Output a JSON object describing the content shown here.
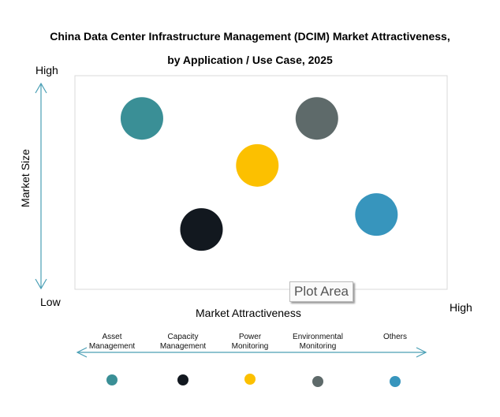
{
  "chart_data": {
    "type": "scatter",
    "title": "China Data Center Infrastructure Management (DCIM) Market Attractiveness,",
    "subtitle": "by Application / Use Case, 2025",
    "xlabel": "Market Attractiveness",
    "ylabel": "Market Size",
    "x_low": "Low",
    "x_high": "High",
    "y_high": "High",
    "y_low": "Low",
    "xlim": [
      0,
      10
    ],
    "ylim": [
      0,
      10
    ],
    "grid": false,
    "legend_placement": "bottom",
    "points": [
      {
        "name": "Asset Management",
        "x": 1.8,
        "y": 8.0,
        "color": "#3a8f96"
      },
      {
        "name": "Capacity Management",
        "x": 3.4,
        "y": 2.8,
        "color": "#12181f"
      },
      {
        "name": "Power Monitoring",
        "x": 4.9,
        "y": 5.8,
        "color": "#fcc000"
      },
      {
        "name": "Environmental Monitoring",
        "x": 6.5,
        "y": 8.0,
        "color": "#5e6a6a"
      },
      {
        "name": "Others",
        "x": 8.1,
        "y": 3.5,
        "color": "#3795bd"
      }
    ],
    "tooltip": "Plot Area"
  }
}
